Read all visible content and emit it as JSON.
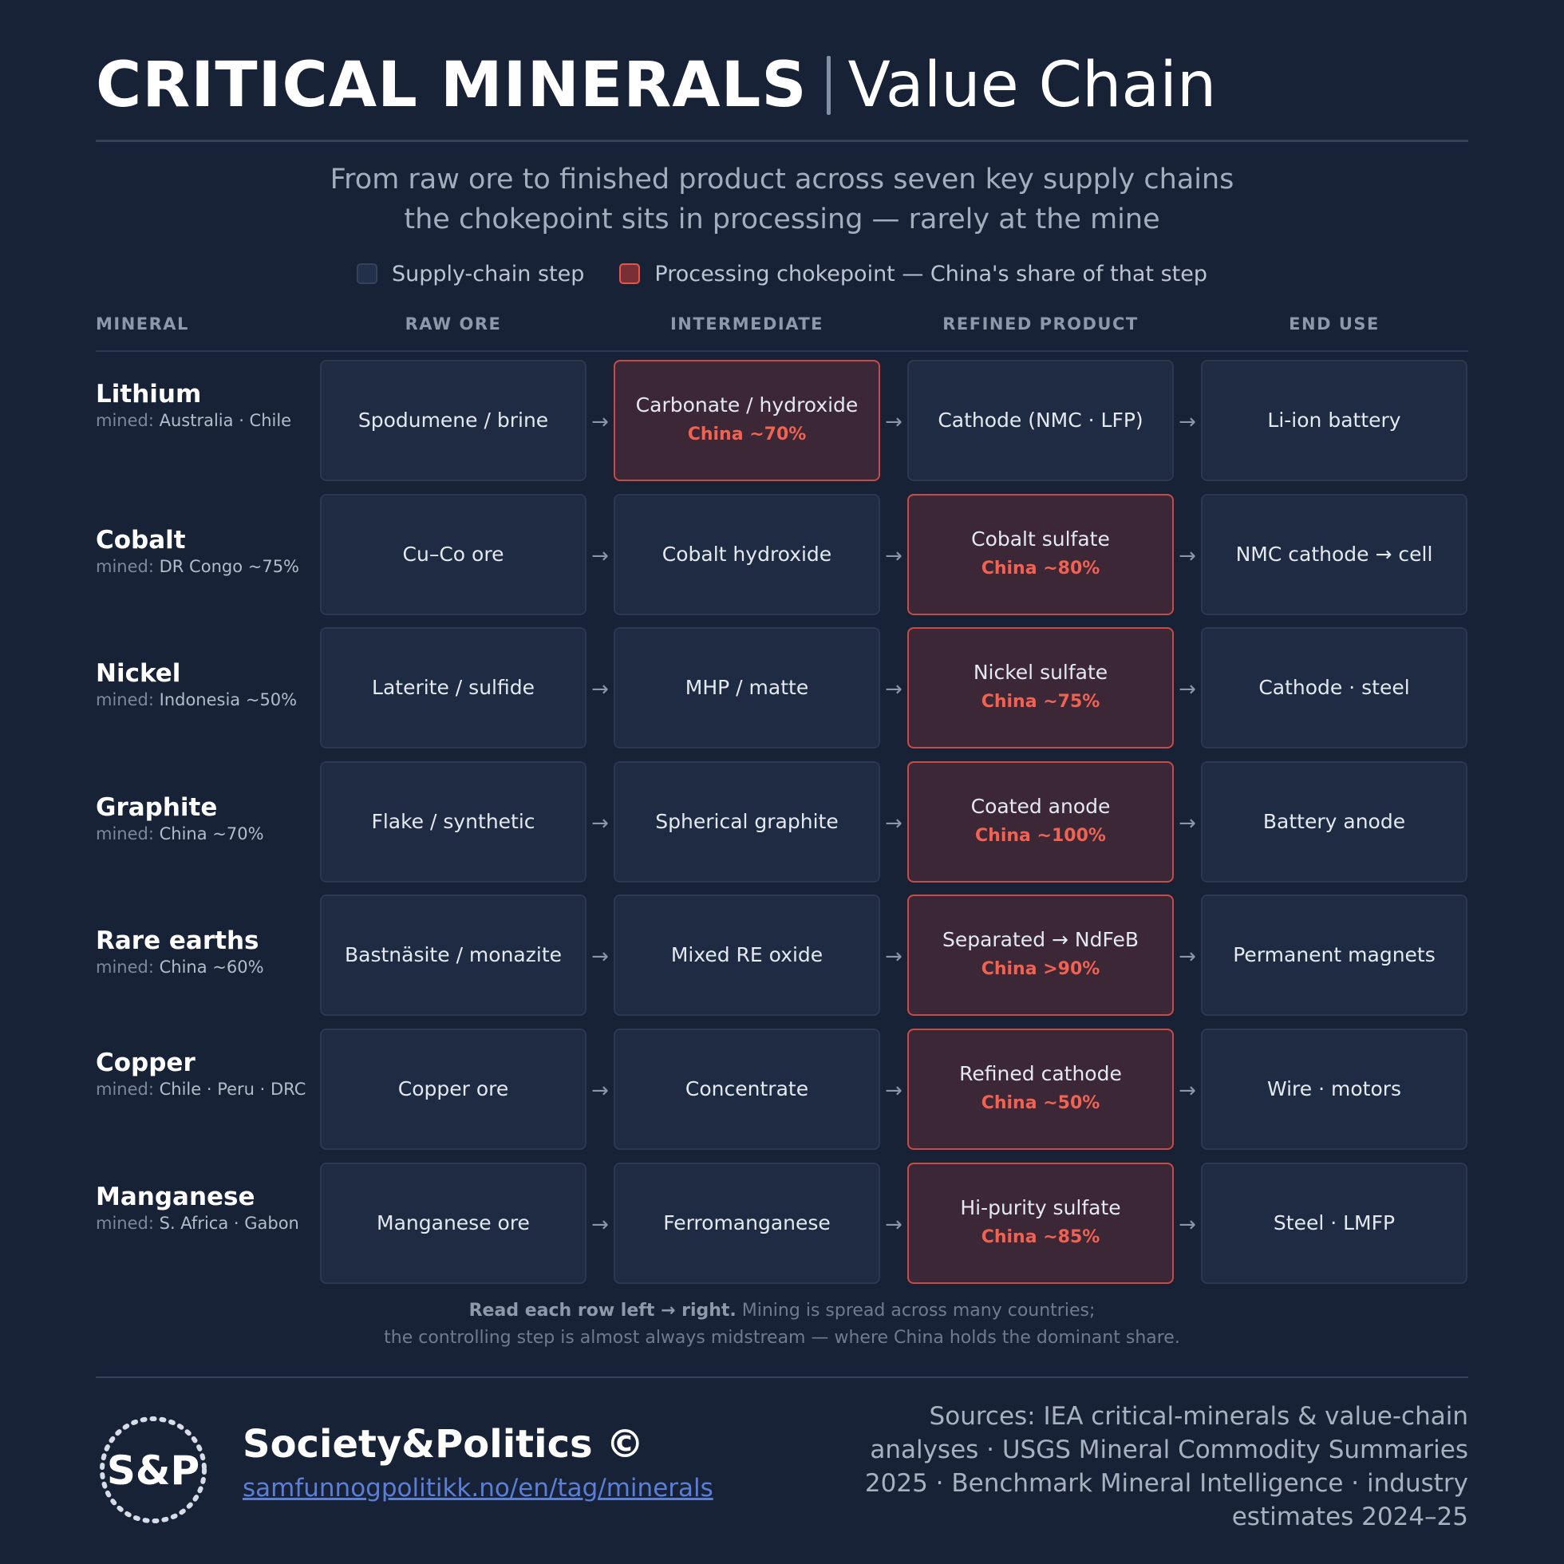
{
  "header": {
    "title_bold": "CRITICAL MINERALS",
    "title_light": "Value Chain",
    "subtitle_line1": "From raw ore to finished product across seven key supply chains",
    "subtitle_line2": "the chokepoint sits in processing — rarely at the mine"
  },
  "legend": {
    "step_label": "Supply-chain step",
    "choke_label": "Processing chokepoint — China's share of that step"
  },
  "columns": [
    "MINERAL",
    "RAW ORE",
    "INTERMEDIATE",
    "REFINED PRODUCT",
    "END USE"
  ],
  "mined_label": "mined:",
  "arrow": "→",
  "rows": [
    {
      "mineral": "Lithium",
      "mined": "Australia · Chile",
      "steps": [
        {
          "text": "Spodumene / brine",
          "share": "",
          "choke": false
        },
        {
          "text": "Carbonate / hydroxide",
          "share": "China ~70%",
          "choke": true
        },
        {
          "text": "Cathode (NMC · LFP)",
          "share": "",
          "choke": false
        },
        {
          "text": "Li-ion battery",
          "share": "",
          "choke": false
        }
      ]
    },
    {
      "mineral": "Cobalt",
      "mined": "DR Congo ~75%",
      "steps": [
        {
          "text": "Cu–Co ore",
          "share": "",
          "choke": false
        },
        {
          "text": "Cobalt hydroxide",
          "share": "",
          "choke": false
        },
        {
          "text": "Cobalt sulfate",
          "share": "China ~80%",
          "choke": true
        },
        {
          "text": "NMC cathode → cell",
          "share": "",
          "choke": false
        }
      ]
    },
    {
      "mineral": "Nickel",
      "mined": "Indonesia ~50%",
      "steps": [
        {
          "text": "Laterite / sulfide",
          "share": "",
          "choke": false
        },
        {
          "text": "MHP / matte",
          "share": "",
          "choke": false
        },
        {
          "text": "Nickel sulfate",
          "share": "China ~75%",
          "choke": true
        },
        {
          "text": "Cathode · steel",
          "share": "",
          "choke": false
        }
      ]
    },
    {
      "mineral": "Graphite",
      "mined": "China ~70%",
      "steps": [
        {
          "text": "Flake / synthetic",
          "share": "",
          "choke": false
        },
        {
          "text": "Spherical graphite",
          "share": "",
          "choke": false
        },
        {
          "text": "Coated anode",
          "share": "China ~100%",
          "choke": true
        },
        {
          "text": "Battery anode",
          "share": "",
          "choke": false
        }
      ]
    },
    {
      "mineral": "Rare earths",
      "mined": "China ~60%",
      "steps": [
        {
          "text": "Bastnäsite / monazite",
          "share": "",
          "choke": false
        },
        {
          "text": "Mixed RE oxide",
          "share": "",
          "choke": false
        },
        {
          "text": "Separated → NdFeB",
          "share": "China >90%",
          "choke": true
        },
        {
          "text": "Permanent magnets",
          "share": "",
          "choke": false
        }
      ]
    },
    {
      "mineral": "Copper",
      "mined": "Chile · Peru · DRC",
      "steps": [
        {
          "text": "Copper ore",
          "share": "",
          "choke": false
        },
        {
          "text": "Concentrate",
          "share": "",
          "choke": false
        },
        {
          "text": "Refined cathode",
          "share": "China ~50%",
          "choke": true
        },
        {
          "text": "Wire · motors",
          "share": "",
          "choke": false
        }
      ]
    },
    {
      "mineral": "Manganese",
      "mined": "S. Africa · Gabon",
      "steps": [
        {
          "text": "Manganese ore",
          "share": "",
          "choke": false
        },
        {
          "text": "Ferromanganese",
          "share": "",
          "choke": false
        },
        {
          "text": "Hi-purity sulfate",
          "share": "China ~85%",
          "choke": true
        },
        {
          "text": "Steel · LMFP",
          "share": "",
          "choke": false
        }
      ]
    }
  ],
  "note": {
    "strong": "Read each row left → right.",
    "line1_rest": " Mining is spread across many countries;",
    "line2": "the controlling step is almost always midstream — where China holds the dominant share."
  },
  "footer": {
    "logo_text": "S&P",
    "brand": "Society&Politics ©",
    "link": "samfunnogpolitikk.no/en/tag/minerals",
    "sources": "Sources: IEA critical-minerals & value-chain analyses · USGS Mineral Commodity Summaries 2025 · Benchmark Mineral Intelligence · industry estimates 2024–25"
  },
  "colors": {
    "background": "#172236",
    "cell": "#1f2b42",
    "choke_fill": "#3c2736",
    "choke_border": "#c84c45",
    "choke_text": "#f06252",
    "link": "#5b7fd6"
  }
}
